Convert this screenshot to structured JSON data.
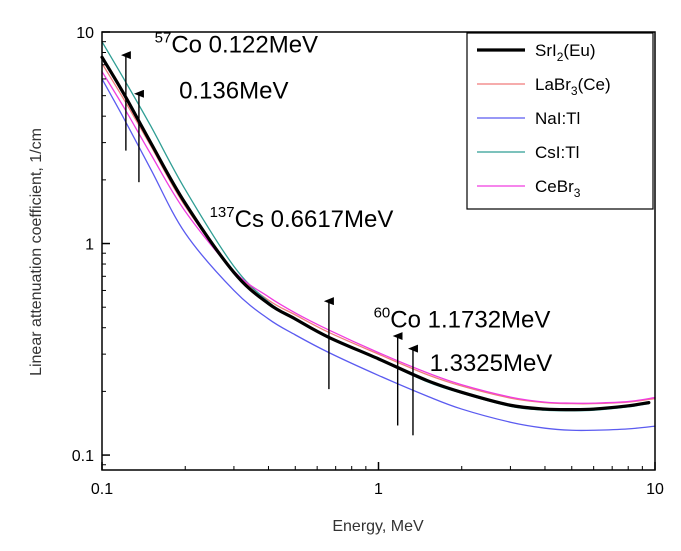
{
  "chart_data": {
    "type": "line",
    "xlabel": "Energy, MeV",
    "ylabel": "Linear attenuation coefficient, 1/cm",
    "xscale": "log",
    "yscale": "log",
    "xlim": [
      0.1,
      10
    ],
    "ylim": [
      0.085,
      10
    ],
    "xticks": [
      {
        "value": 0.1,
        "label": "0.1"
      },
      {
        "value": 1,
        "label": "1"
      },
      {
        "value": 10,
        "label": "10"
      }
    ],
    "yticks": [
      {
        "value": 0.1,
        "label": "0.1"
      },
      {
        "value": 1,
        "label": "1"
      },
      {
        "value": 10,
        "label": "10"
      }
    ],
    "legend_position": "top-right",
    "series": [
      {
        "name": "SrI2(Eu)",
        "name_main": "SrI",
        "name_sub": "2",
        "name_tail": "(Eu)",
        "color": "#000000",
        "width": "thick",
        "x": [
          0.1,
          0.12,
          0.15,
          0.2,
          0.3,
          0.4,
          0.5,
          0.662,
          1.0,
          1.5,
          2.0,
          3.0,
          4.0,
          5.0,
          6.0,
          8.0,
          9.5
        ],
        "y": [
          7.6,
          5.1,
          3.0,
          1.55,
          0.73,
          0.52,
          0.44,
          0.36,
          0.285,
          0.225,
          0.198,
          0.172,
          0.165,
          0.164,
          0.165,
          0.171,
          0.177
        ]
      },
      {
        "name": "LaBr3(Ce)",
        "name_main": "LaBr",
        "name_sub": "3",
        "name_tail": "(Ce)",
        "color": "#f07b7b",
        "width": "thin",
        "x": [
          0.1,
          0.12,
          0.15,
          0.2,
          0.3,
          0.4,
          0.5,
          0.662,
          1.0,
          1.5,
          2.0,
          3.0,
          4.0,
          5.0,
          6.0,
          8.0,
          10.0
        ],
        "y": [
          7.1,
          4.8,
          2.9,
          1.5,
          0.74,
          0.54,
          0.46,
          0.38,
          0.3,
          0.24,
          0.212,
          0.186,
          0.177,
          0.175,
          0.175,
          0.178,
          0.185
        ]
      },
      {
        "name": "NaI:Tl",
        "name_main": "NaI:Tl",
        "name_sub": "",
        "name_tail": "",
        "color": "#5b5bf0",
        "width": "thin",
        "x": [
          0.1,
          0.12,
          0.15,
          0.2,
          0.3,
          0.4,
          0.5,
          0.662,
          1.0,
          1.5,
          2.0,
          3.0,
          4.0,
          5.0,
          6.0,
          8.0,
          10.0
        ],
        "y": [
          6.0,
          3.9,
          2.25,
          1.12,
          0.6,
          0.44,
          0.37,
          0.305,
          0.238,
          0.19,
          0.165,
          0.143,
          0.134,
          0.131,
          0.131,
          0.133,
          0.137
        ]
      },
      {
        "name": "CsI:Tl",
        "name_main": "CsI:Tl",
        "name_sub": "",
        "name_tail": "",
        "color": "#2f9e94",
        "width": "thin",
        "x": [
          0.1,
          0.12,
          0.15,
          0.2,
          0.3,
          0.4,
          0.5,
          0.662,
          1.0,
          1.5,
          2.0,
          3.0,
          4.0,
          5.0,
          6.0,
          8.0,
          9.5
        ],
        "y": [
          9.0,
          6.0,
          3.6,
          1.8,
          0.78,
          0.53,
          0.44,
          0.36,
          0.283,
          0.222,
          0.196,
          0.17,
          0.163,
          0.162,
          0.163,
          0.169,
          0.175
        ]
      },
      {
        "name": "CeBr3",
        "name_main": "CeBr",
        "name_sub": "3",
        "name_tail": "",
        "color": "#f03ce0",
        "width": "thin",
        "x": [
          0.1,
          0.12,
          0.15,
          0.2,
          0.3,
          0.4,
          0.5,
          0.662,
          1.0,
          1.5,
          2.0,
          3.0,
          4.0,
          5.0,
          6.0,
          8.0,
          10.0
        ],
        "y": [
          6.5,
          4.4,
          2.65,
          1.42,
          0.74,
          0.56,
          0.47,
          0.39,
          0.305,
          0.245,
          0.215,
          0.188,
          0.178,
          0.176,
          0.176,
          0.179,
          0.187
        ]
      }
    ],
    "annotations": [
      {
        "id": "co57-a",
        "sup": "57",
        "main": "Co 0.122MeV",
        "text": "57Co 0.122MeV",
        "x": 0.155,
        "y": 8.0
      },
      {
        "id": "co57-b",
        "sup": "",
        "main": "0.136MeV",
        "text": "0.136MeV",
        "x": 0.19,
        "y": 4.85
      },
      {
        "id": "cs137",
        "sup": "137",
        "main": "Cs 0.6617MeV",
        "text": "137Cs 0.6617MeV",
        "x": 0.245,
        "y": 1.2
      },
      {
        "id": "co60-a",
        "sup": "60",
        "main": "Co 1.1732MeV",
        "text": "60Co 1.1732MeV",
        "x": 0.96,
        "y": 0.4
      },
      {
        "id": "co60-b",
        "sup": "",
        "main": "1.3325MeV",
        "text": "1.3325MeV",
        "x": 1.53,
        "y": 0.25
      }
    ],
    "arrows": [
      {
        "x": 0.122,
        "y_from": 2.75,
        "y_to": 8.3
      },
      {
        "x": 0.136,
        "y_from": 1.95,
        "y_to": 5.45
      },
      {
        "x": 0.6617,
        "y_from": 0.205,
        "y_to": 0.57
      },
      {
        "x": 1.1732,
        "y_from": 0.138,
        "y_to": 0.39
      },
      {
        "x": 1.3325,
        "y_from": 0.124,
        "y_to": 0.34
      }
    ]
  }
}
